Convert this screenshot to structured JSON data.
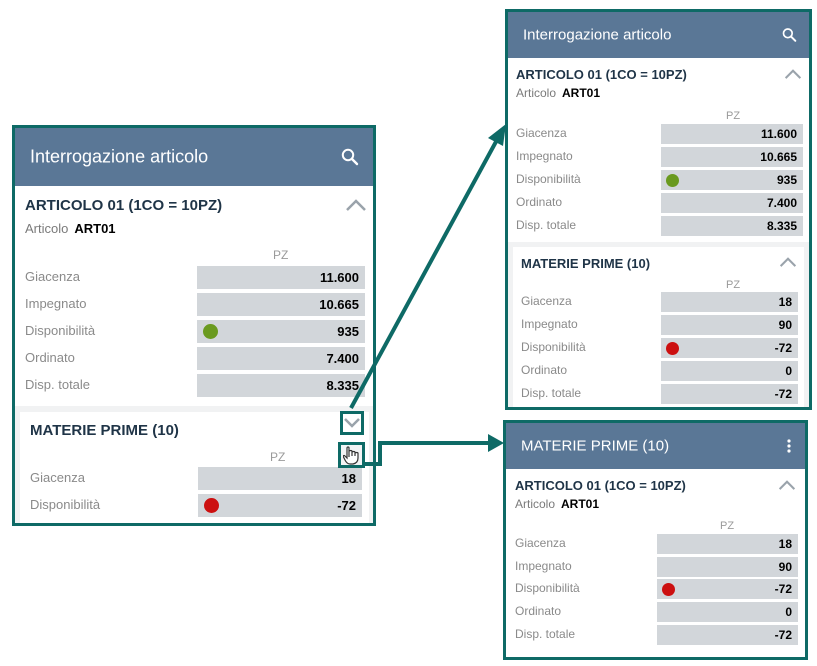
{
  "colors": {
    "green_dot": "#6a9a1f",
    "red_dot": "#cc1010",
    "header": "#5a7796",
    "teal": "#0e6a66"
  },
  "left": {
    "header_title": "Interrogazione articolo",
    "card_title": "ARTICOLO 01 (1CO = 10PZ)",
    "art_label": "Articolo",
    "art_code": "ART01",
    "unit": "PZ",
    "rows": [
      {
        "label": "Giacenza",
        "value": "11.600"
      },
      {
        "label": "Impegnato",
        "value": "10.665"
      },
      {
        "label": "Disponibilità",
        "value": "935",
        "dot": "green"
      },
      {
        "label": "Ordinato",
        "value": "7.400"
      },
      {
        "label": "Disp. totale",
        "value": "8.335"
      }
    ],
    "mp_title": "MATERIE PRIME (10)",
    "mp_unit": "PZ",
    "mp_rows": [
      {
        "label": "Giacenza",
        "value": "18"
      },
      {
        "label": "Disponibilità",
        "value": "-72",
        "dot": "red"
      }
    ]
  },
  "topright": {
    "header_title": "Interrogazione articolo",
    "card_title": "ARTICOLO 01 (1CO = 10PZ)",
    "art_label": "Articolo",
    "art_code": "ART01",
    "unit": "PZ",
    "rows": [
      {
        "label": "Giacenza",
        "value": "11.600"
      },
      {
        "label": "Impegnato",
        "value": "10.665"
      },
      {
        "label": "Disponibilità",
        "value": "935",
        "dot": "green"
      },
      {
        "label": "Ordinato",
        "value": "7.400"
      },
      {
        "label": "Disp. totale",
        "value": "8.335"
      }
    ],
    "mp_title": "MATERIE PRIME (10)",
    "mp_unit": "PZ",
    "mp_rows": [
      {
        "label": "Giacenza",
        "value": "18"
      },
      {
        "label": "Impegnato",
        "value": "90"
      },
      {
        "label": "Disponibilità",
        "value": "-72",
        "dot": "red"
      },
      {
        "label": "Ordinato",
        "value": "0"
      },
      {
        "label": "Disp. totale",
        "value": "-72"
      }
    ]
  },
  "bottomright": {
    "header_title": "MATERIE PRIME (10)",
    "card_title": "ARTICOLO 01 (1CO = 10PZ)",
    "art_label": "Articolo",
    "art_code": "ART01",
    "unit": "PZ",
    "rows": [
      {
        "label": "Giacenza",
        "value": "18"
      },
      {
        "label": "Impegnato",
        "value": "90"
      },
      {
        "label": "Disponibilità",
        "value": "-72",
        "dot": "red"
      },
      {
        "label": "Ordinato",
        "value": "0"
      },
      {
        "label": "Disp. totale",
        "value": "-72"
      }
    ]
  }
}
